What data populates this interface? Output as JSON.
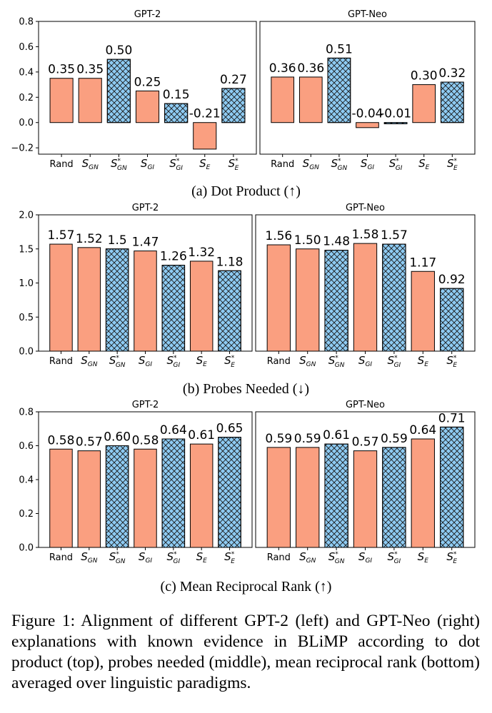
{
  "chart_data": [
    {
      "type": "bar",
      "caption": "(a) Dot Product (↑)",
      "ylim": [
        -0.25,
        0.8
      ],
      "yticks": [
        -0.2,
        0.0,
        0.2,
        0.4,
        0.6,
        0.8
      ],
      "ytick_labels": [
        "−0.2",
        "0.0",
        "0.2",
        "0.4",
        "0.6",
        "0.8"
      ],
      "categories": [
        {
          "base": "Rand",
          "sub": "",
          "star": false
        },
        {
          "base": "S",
          "sub": "GN",
          "star": false
        },
        {
          "base": "S",
          "sub": "GN",
          "star": true
        },
        {
          "base": "S",
          "sub": "GI",
          "star": false
        },
        {
          "base": "S",
          "sub": "GI",
          "star": true
        },
        {
          "base": "S",
          "sub": "E",
          "star": false
        },
        {
          "base": "S",
          "sub": "E",
          "star": true
        }
      ],
      "hatched": [
        false,
        false,
        true,
        false,
        true,
        false,
        true
      ],
      "panels": [
        {
          "title": "GPT-2",
          "values": [
            0.35,
            0.35,
            0.5,
            0.25,
            0.15,
            -0.21,
            0.27
          ],
          "labels": [
            "0.35",
            "0.35",
            "0.50",
            "0.25",
            "0.15",
            "-0.21",
            "0.27"
          ]
        },
        {
          "title": "GPT-Neo",
          "values": [
            0.36,
            0.36,
            0.51,
            -0.04,
            -0.01,
            0.3,
            0.32
          ],
          "labels": [
            "0.36",
            "0.36",
            "0.51",
            "-0.04",
            "-0.01",
            "0.30",
            "0.32"
          ]
        }
      ]
    },
    {
      "type": "bar",
      "caption": "(b) Probes Needed (↓)",
      "ylim": [
        0.0,
        2.0
      ],
      "yticks": [
        0.0,
        0.5,
        1.0,
        1.5,
        2.0
      ],
      "ytick_labels": [
        "0.0",
        "0.5",
        "1.0",
        "1.5",
        "2.0"
      ],
      "categories": [
        {
          "base": "Rand",
          "sub": "",
          "star": false
        },
        {
          "base": "S",
          "sub": "GN",
          "star": false
        },
        {
          "base": "S",
          "sub": "GN",
          "star": true
        },
        {
          "base": "S",
          "sub": "GI",
          "star": false
        },
        {
          "base": "S",
          "sub": "GI",
          "star": true
        },
        {
          "base": "S",
          "sub": "E",
          "star": false
        },
        {
          "base": "S",
          "sub": "E",
          "star": true
        }
      ],
      "hatched": [
        false,
        false,
        true,
        false,
        true,
        false,
        true
      ],
      "panels": [
        {
          "title": "GPT-2",
          "values": [
            1.57,
            1.52,
            1.5,
            1.47,
            1.26,
            1.32,
            1.18
          ],
          "labels": [
            "1.57",
            "1.52",
            "1.5",
            "1.47",
            "1.26",
            "1.32",
            "1.18"
          ]
        },
        {
          "title": "GPT-Neo",
          "values": [
            1.56,
            1.5,
            1.48,
            1.58,
            1.57,
            1.17,
            0.92
          ],
          "labels": [
            "1.56",
            "1.50",
            "1.48",
            "1.58",
            "1.57",
            "1.17",
            "0.92"
          ]
        }
      ]
    },
    {
      "type": "bar",
      "caption": "(c) Mean Reciprocal Rank (↑)",
      "ylim": [
        0.0,
        0.8
      ],
      "yticks": [
        0.0,
        0.2,
        0.4,
        0.6,
        0.8
      ],
      "ytick_labels": [
        "0.0",
        "0.2",
        "0.4",
        "0.6",
        "0.8"
      ],
      "categories": [
        {
          "base": "Rand",
          "sub": "",
          "star": false
        },
        {
          "base": "S",
          "sub": "GN",
          "star": false
        },
        {
          "base": "S",
          "sub": "GN",
          "star": true
        },
        {
          "base": "S",
          "sub": "GI",
          "star": false
        },
        {
          "base": "S",
          "sub": "GI",
          "star": true
        },
        {
          "base": "S",
          "sub": "E",
          "star": false
        },
        {
          "base": "S",
          "sub": "E",
          "star": true
        }
      ],
      "hatched": [
        false,
        false,
        true,
        false,
        true,
        false,
        true
      ],
      "panels": [
        {
          "title": "GPT-2",
          "values": [
            0.58,
            0.57,
            0.6,
            0.58,
            0.64,
            0.61,
            0.65
          ],
          "labels": [
            "0.58",
            "0.57",
            "0.60",
            "0.58",
            "0.64",
            "0.61",
            "0.65"
          ]
        },
        {
          "title": "GPT-Neo",
          "values": [
            0.59,
            0.59,
            0.61,
            0.57,
            0.59,
            0.64,
            0.71
          ],
          "labels": [
            "0.59",
            "0.59",
            "0.61",
            "0.57",
            "0.59",
            "0.64",
            "0.71"
          ]
        }
      ]
    }
  ],
  "colors": {
    "plain_bar": "#fa9f80",
    "hatched_bar": "#8ecbf3",
    "edge": "#000000"
  },
  "figure_caption": "Figure 1: Alignment of different GPT-2 (left) and GPT-Neo (right) explanations with known evidence in BLiMP according to dot product (top), probes needed (middle), mean reciprocal rank (bottom) averaged over linguistic paradigms."
}
